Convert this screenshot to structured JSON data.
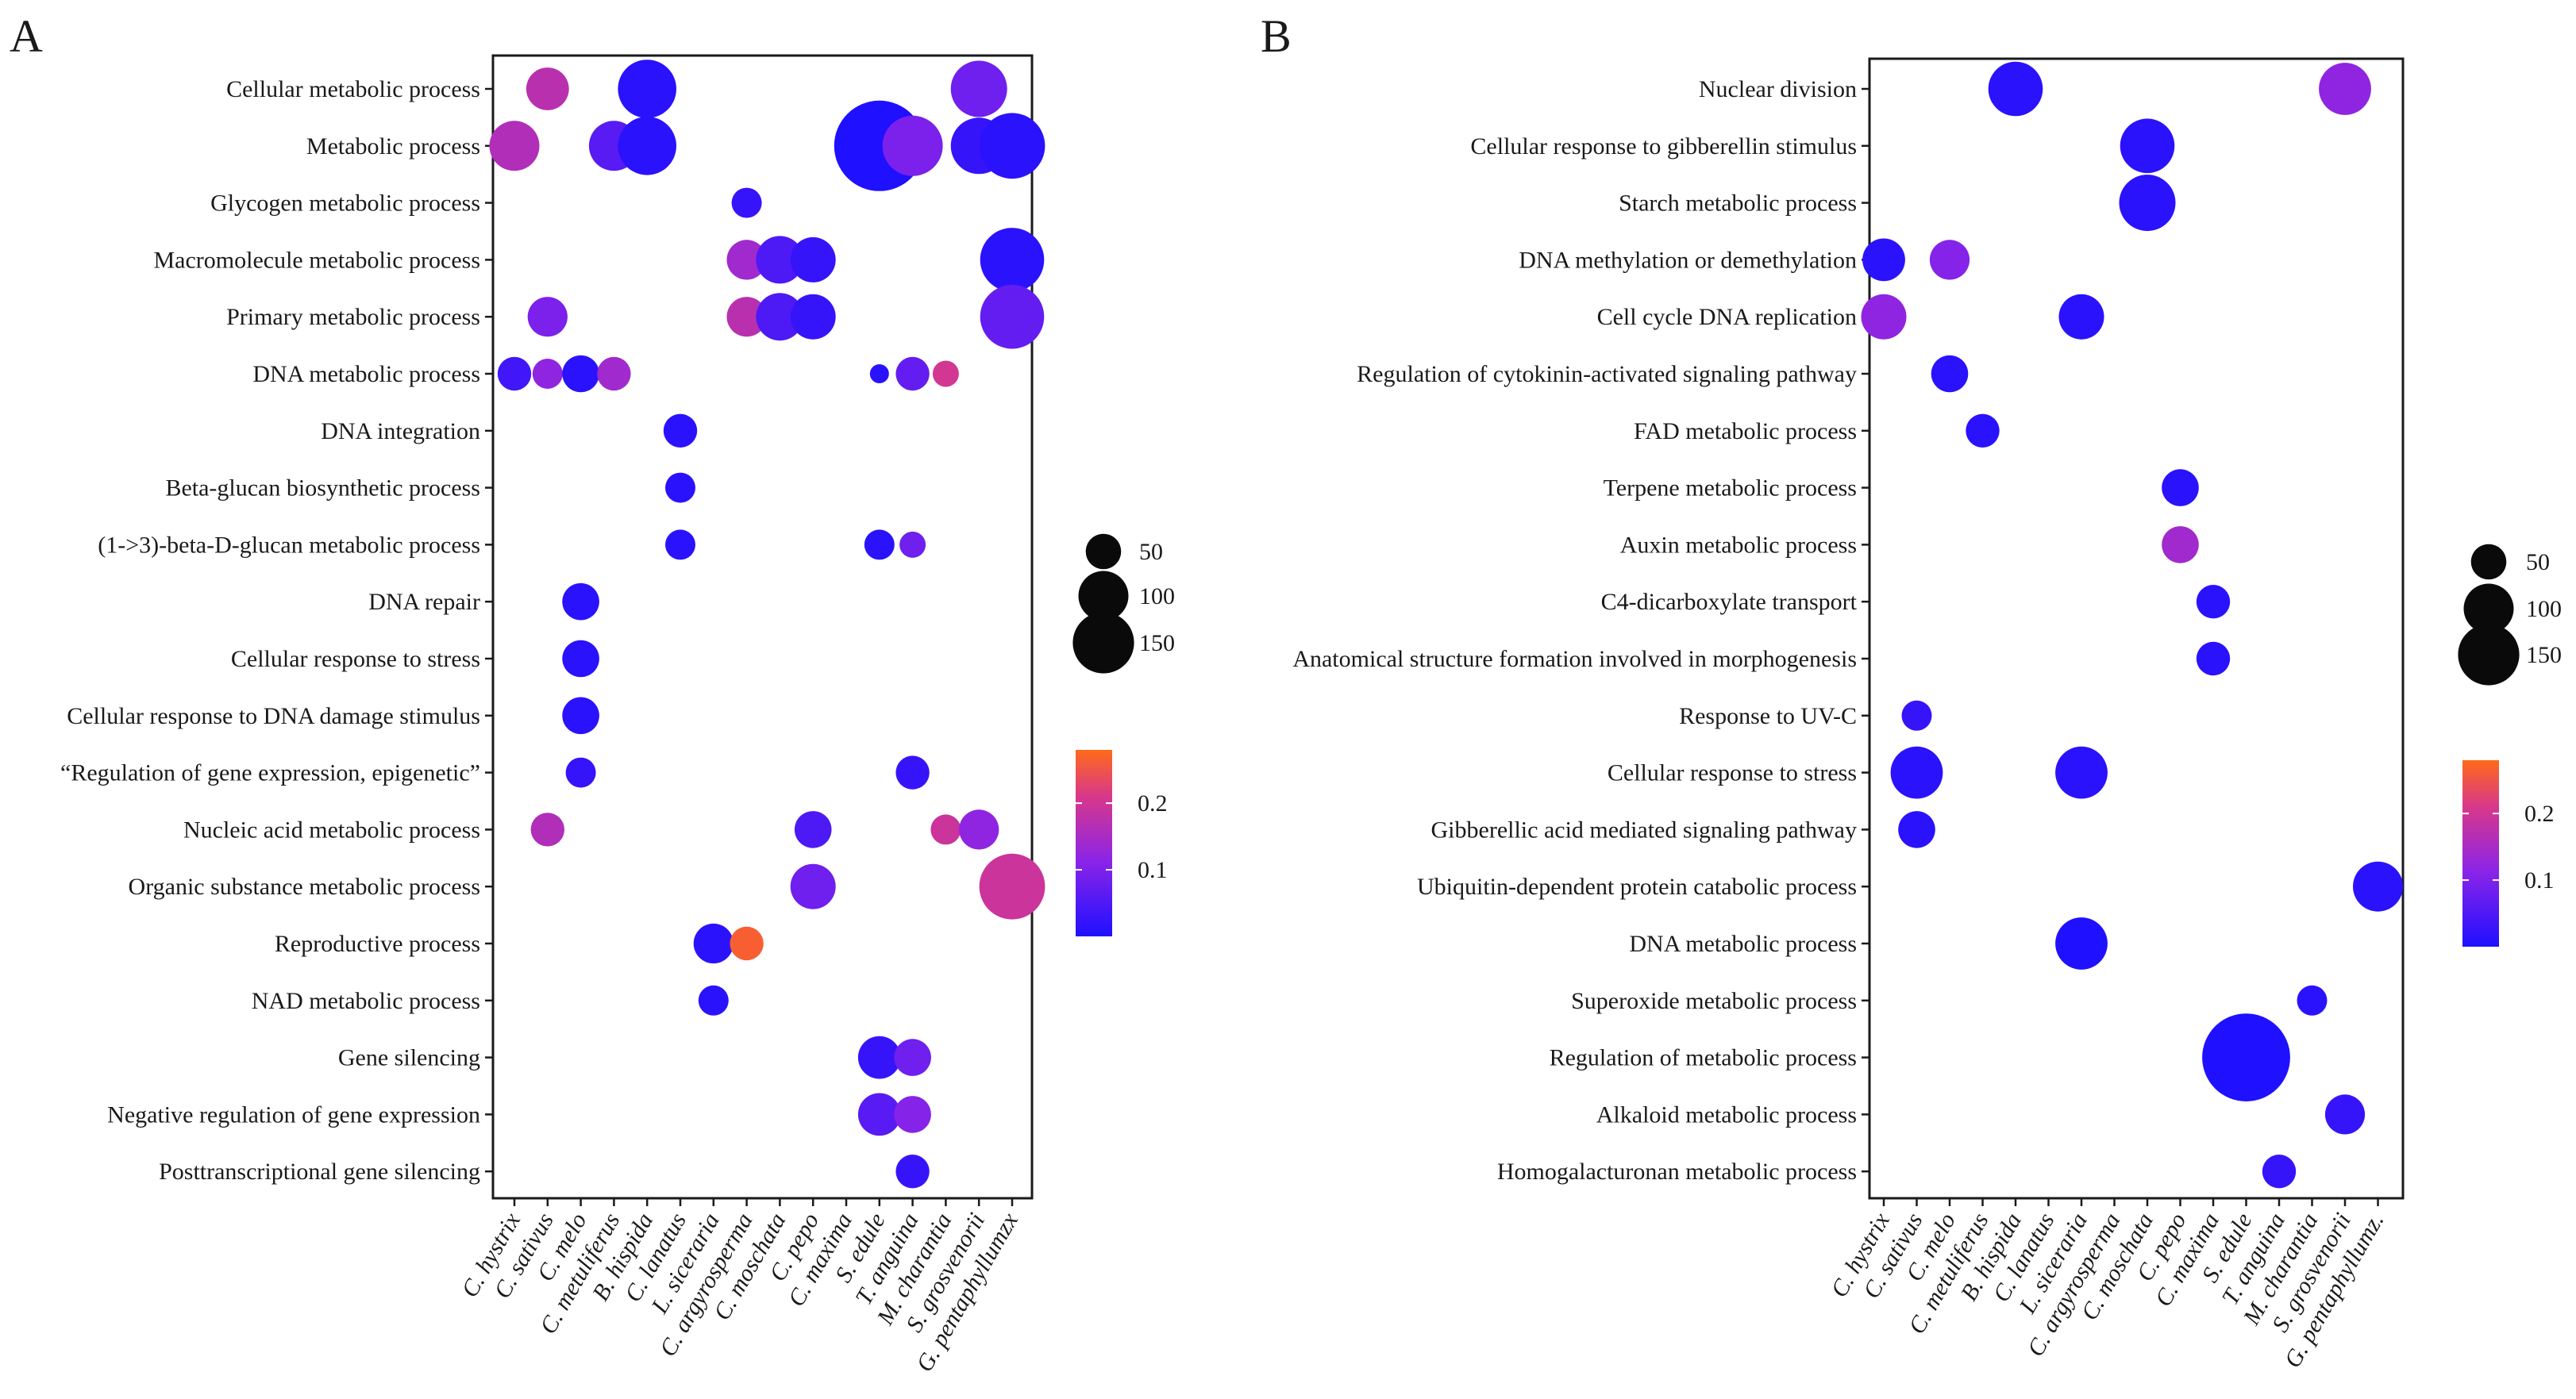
{
  "chart_data": [
    {
      "type": "bubble",
      "panel": "A",
      "species": [
        "C. hystrix",
        "C. sativus",
        "C. melo",
        "C. metuliferus",
        "B. hispida",
        "C. lanatus",
        "L. siceraria",
        "C. argyrosperma",
        "C. moschata",
        "C. pepo",
        "C. maxima",
        "S. edule",
        "T. anguina",
        "M. charantia",
        "S. grosvenorii",
        "G. pentaphyllumzx"
      ],
      "terms": [
        "Cellular metabolic process",
        "Metabolic process",
        "Glycogen metabolic process",
        "Macromolecule metabolic process",
        "Primary metabolic process",
        "DNA metabolic process",
        "DNA integration",
        "Beta-glucan biosynthetic process",
        "(1->3)-beta-D-glucan metabolic process",
        "DNA repair",
        "Cellular response to stress",
        "Cellular response to DNA damage stimulus",
        "“Regulation of gene expression, epigenetic”",
        "Nucleic acid metabolic process",
        "Organic substance metabolic process",
        "Reproductive process",
        "NAD metabolic process",
        "Gene silencing",
        "Negative regulation of gene expression",
        "Posttranscriptional gene silencing"
      ],
      "points": [
        {
          "species": "C. sativus",
          "term": "Cellular metabolic process",
          "count": 40,
          "p": 0.15
        },
        {
          "species": "B. hispida",
          "term": "Cellular metabolic process",
          "count": 75,
          "p": 0.01
        },
        {
          "species": "S. grosvenorii",
          "term": "Cellular metabolic process",
          "count": 70,
          "p": 0.07
        },
        {
          "species": "C. hystrix",
          "term": "Metabolic process",
          "count": 55,
          "p": 0.14
        },
        {
          "species": "C. metuliferus",
          "term": "Metabolic process",
          "count": 55,
          "p": 0.05
        },
        {
          "species": "B. hispida",
          "term": "Metabolic process",
          "count": 75,
          "p": 0.01
        },
        {
          "species": "S. edule",
          "term": "Metabolic process",
          "count": 180,
          "p": 0.0
        },
        {
          "species": "T. anguina",
          "term": "Metabolic process",
          "count": 80,
          "p": 0.08
        },
        {
          "species": "S. grosvenorii",
          "term": "Metabolic process",
          "count": 70,
          "p": 0.02
        },
        {
          "species": "G. pentaphyllumzx",
          "term": "Metabolic process",
          "count": 95,
          "p": 0.01
        },
        {
          "species": "C. argyrosperma",
          "term": "Glycogen metabolic process",
          "count": 20,
          "p": 0.02
        },
        {
          "species": "C. argyrosperma",
          "term": "Macromolecule metabolic process",
          "count": 35,
          "p": 0.12
        },
        {
          "species": "C. moschata",
          "term": "Macromolecule metabolic process",
          "count": 50,
          "p": 0.04
        },
        {
          "species": "C. pepo",
          "term": "Macromolecule metabolic process",
          "count": 45,
          "p": 0.02
        },
        {
          "species": "G. pentaphyllumzx",
          "term": "Macromolecule metabolic process",
          "count": 90,
          "p": 0.01
        },
        {
          "species": "C. sativus",
          "term": "Primary metabolic process",
          "count": 35,
          "p": 0.08
        },
        {
          "species": "C. argyrosperma",
          "term": "Primary metabolic process",
          "count": 35,
          "p": 0.15
        },
        {
          "species": "C. moschata",
          "term": "Primary metabolic process",
          "count": 50,
          "p": 0.04
        },
        {
          "species": "C. pepo",
          "term": "Primary metabolic process",
          "count": 45,
          "p": 0.02
        },
        {
          "species": "G. pentaphyllumzx",
          "term": "Primary metabolic process",
          "count": 90,
          "p": 0.06
        },
        {
          "species": "C. hystrix",
          "term": "DNA metabolic process",
          "count": 25,
          "p": 0.03
        },
        {
          "species": "C. sativus",
          "term": "DNA metabolic process",
          "count": 20,
          "p": 0.1
        },
        {
          "species": "C. melo",
          "term": "DNA metabolic process",
          "count": 30,
          "p": 0.01
        },
        {
          "species": "C. metuliferus",
          "term": "DNA metabolic process",
          "count": 25,
          "p": 0.12
        },
        {
          "species": "S. edule",
          "term": "DNA metabolic process",
          "count": 8,
          "p": 0.01
        },
        {
          "species": "T. anguina",
          "term": "DNA metabolic process",
          "count": 25,
          "p": 0.06
        },
        {
          "species": "M. charantia",
          "term": "DNA metabolic process",
          "count": 15,
          "p": 0.18
        },
        {
          "species": "C. lanatus",
          "term": "DNA integration",
          "count": 25,
          "p": 0.01
        },
        {
          "species": "C. lanatus",
          "term": "Beta-glucan biosynthetic process",
          "count": 20,
          "p": 0.01
        },
        {
          "species": "C. lanatus",
          "term": "(1->3)-beta-D-glucan metabolic process",
          "count": 20,
          "p": 0.01
        },
        {
          "species": "S. edule",
          "term": "(1->3)-beta-D-glucan metabolic process",
          "count": 20,
          "p": 0.01
        },
        {
          "species": "T. anguina",
          "term": "(1->3)-beta-D-glucan metabolic process",
          "count": 15,
          "p": 0.07
        },
        {
          "species": "C. melo",
          "term": "DNA repair",
          "count": 30,
          "p": 0.01
        },
        {
          "species": "C. melo",
          "term": "Cellular response to stress",
          "count": 30,
          "p": 0.01
        },
        {
          "species": "C. melo",
          "term": "Cellular response to DNA damage stimulus",
          "count": 30,
          "p": 0.01
        },
        {
          "species": "C. melo",
          "term": "“Regulation of gene expression, epigenetic”",
          "count": 20,
          "p": 0.02
        },
        {
          "species": "T. anguina",
          "term": "“Regulation of gene expression, epigenetic”",
          "count": 25,
          "p": 0.02
        },
        {
          "species": "C. sativus",
          "term": "Nucleic acid metabolic process",
          "count": 25,
          "p": 0.14
        },
        {
          "species": "C. pepo",
          "term": "Nucleic acid metabolic process",
          "count": 30,
          "p": 0.04
        },
        {
          "species": "M. charantia",
          "term": "Nucleic acid metabolic process",
          "count": 20,
          "p": 0.17
        },
        {
          "species": "S. grosvenorii",
          "term": "Nucleic acid metabolic process",
          "count": 35,
          "p": 0.1
        },
        {
          "species": "C. pepo",
          "term": "Organic substance metabolic process",
          "count": 45,
          "p": 0.07
        },
        {
          "species": "G. pentaphyllumzx",
          "term": "Organic substance metabolic process",
          "count": 95,
          "p": 0.17
        },
        {
          "species": "L. siceraria",
          "term": "Reproductive process",
          "count": 35,
          "p": 0.01
        },
        {
          "species": "C. argyrosperma",
          "term": "Reproductive process",
          "count": 25,
          "p": 0.26
        },
        {
          "species": "L. siceraria",
          "term": "NAD metabolic process",
          "count": 20,
          "p": 0.01
        },
        {
          "species": "S. edule",
          "term": "Gene silencing",
          "count": 40,
          "p": 0.02
        },
        {
          "species": "T. anguina",
          "term": "Gene silencing",
          "count": 30,
          "p": 0.07
        },
        {
          "species": "S. edule",
          "term": "Negative regulation of gene expression",
          "count": 40,
          "p": 0.05
        },
        {
          "species": "T. anguina",
          "term": "Negative regulation of gene expression",
          "count": 30,
          "p": 0.09
        },
        {
          "species": "T. anguina",
          "term": "Posttranscriptional gene silencing",
          "count": 25,
          "p": 0.02
        }
      ],
      "legend": {
        "size_values": [
          50,
          100,
          150
        ],
        "color_ticks": [
          0.2,
          0.1
        ],
        "color_scale": {
          "min": 0.0,
          "max": 0.28,
          "colors": [
            "#1f10ff",
            "#8a24e8",
            "#d8388a",
            "#ff6a1a"
          ]
        }
      }
    },
    {
      "type": "bubble",
      "panel": "B",
      "species": [
        "C. hystrix",
        "C. sativus",
        "C. melo",
        "C. metuliferus",
        "B. hispida",
        "C. lanatus",
        "L. siceraria",
        "C. argyrosperma",
        "C. moschata",
        "C. pepo",
        "C. maxima",
        "S. edule",
        "T. anguina",
        "M. charantia",
        "S. grosvenorii",
        "G. pentaphyllumz."
      ],
      "terms": [
        "Nuclear division",
        "Cellular response to gibberellin stimulus",
        "Starch metabolic process",
        "DNA methylation or demethylation",
        "Cell cycle DNA replication",
        "Regulation of cytokinin-activated  signaling pathway",
        "FAD metabolic process",
        "Terpene metabolic process",
        "Auxin metabolic process",
        "C4-dicarboxylate transport",
        "Anatomical structure formation involved in morphogenesis",
        "Response to UV-C",
        "Cellular response to stress",
        "Gibberellic acid mediated signaling pathway",
        "Ubiquitin-dependent protein catabolic process",
        "DNA metabolic process",
        "Superoxide metabolic process",
        "Regulation of metabolic process",
        "Alkaloid metabolic process",
        "Homogalacturonan metabolic process"
      ],
      "points": [
        {
          "species": "B. hispida",
          "term": "Nuclear division",
          "count": 65,
          "p": 0.01
        },
        {
          "species": "S. grosvenorii",
          "term": "Nuclear division",
          "count": 60,
          "p": 0.1
        },
        {
          "species": "C. moschata",
          "term": "Cellular response to gibberellin stimulus",
          "count": 65,
          "p": 0.01
        },
        {
          "species": "C. moschata",
          "term": "Starch metabolic process",
          "count": 70,
          "p": 0.01
        },
        {
          "species": "C. hystrix",
          "term": "DNA methylation or demethylation",
          "count": 40,
          "p": 0.01
        },
        {
          "species": "C. melo",
          "term": "DNA methylation or demethylation",
          "count": 35,
          "p": 0.09
        },
        {
          "species": "C. hystrix",
          "term": "Cell cycle DNA replication",
          "count": 45,
          "p": 0.1
        },
        {
          "species": "L. siceraria",
          "term": "Cell cycle DNA replication",
          "count": 45,
          "p": 0.01
        },
        {
          "species": "C. melo",
          "term": "Regulation of cytokinin-activated  signaling pathway",
          "count": 30,
          "p": 0.01
        },
        {
          "species": "C. metuliferus",
          "term": "FAD metabolic process",
          "count": 25,
          "p": 0.01
        },
        {
          "species": "C. pepo",
          "term": "Terpene metabolic process",
          "count": 30,
          "p": 0.01
        },
        {
          "species": "C. pepo",
          "term": "Auxin metabolic process",
          "count": 30,
          "p": 0.12
        },
        {
          "species": "C. maxima",
          "term": "C4-dicarboxylate transport",
          "count": 25,
          "p": 0.01
        },
        {
          "species": "C. maxima",
          "term": "Anatomical structure formation involved in morphogenesis",
          "count": 25,
          "p": 0.01
        },
        {
          "species": "C. sativus",
          "term": "Response to UV-C",
          "count": 20,
          "p": 0.02
        },
        {
          "species": "C. sativus",
          "term": "Cellular response to stress",
          "count": 60,
          "p": 0.01
        },
        {
          "species": "L. siceraria",
          "term": "Cellular response to stress",
          "count": 60,
          "p": 0.01
        },
        {
          "species": "C. sativus",
          "term": "Gibberellic acid mediated signaling pathway",
          "count": 30,
          "p": 0.01
        },
        {
          "species": "G. pentaphyllumz.",
          "term": "Ubiquitin-dependent protein catabolic process",
          "count": 55,
          "p": 0.01
        },
        {
          "species": "L. siceraria",
          "term": "DNA metabolic process",
          "count": 60,
          "p": 0.0
        },
        {
          "species": "M. charantia",
          "term": "Superoxide metabolic process",
          "count": 20,
          "p": 0.01
        },
        {
          "species": "S. edule",
          "term": "Regulation of metabolic process",
          "count": 170,
          "p": 0.0
        },
        {
          "species": "S. grosvenorii",
          "term": "Alkaloid metabolic process",
          "count": 35,
          "p": 0.02
        },
        {
          "species": "T. anguina",
          "term": "Homogalacturonan metabolic process",
          "count": 25,
          "p": 0.02
        }
      ],
      "legend": {
        "size_values": [
          50,
          100,
          150
        ],
        "color_ticks": [
          0.2,
          0.1
        ],
        "color_scale": {
          "min": 0.0,
          "max": 0.28,
          "colors": [
            "#1f10ff",
            "#8a24e8",
            "#d8388a",
            "#ff6a1a"
          ]
        }
      }
    }
  ]
}
